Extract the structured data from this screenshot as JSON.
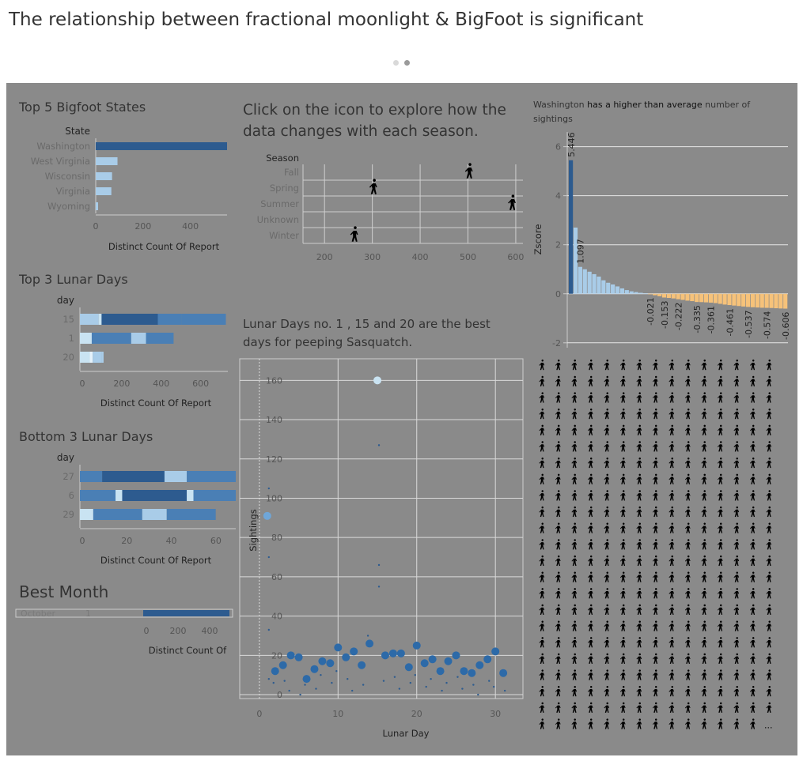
{
  "page": {
    "title": "The relationship between fractional moonlight & BigFoot is significant",
    "pager_colors": [
      "#d9d9d9",
      "#9a9a9a"
    ]
  },
  "colors": {
    "dark_blue": "#2d5b8f",
    "mid_blue": "#4a7fb5",
    "light_blue": "#a9cce8",
    "pale_blue": "#c9e3f2",
    "orange": "#f6c27a",
    "panel_bg": "#8a8a8a"
  },
  "panels": {
    "season_prompt": "Click on the icon to explore how the data changes  with each season.",
    "lunar_note": "Lunar Days no. 1 , 15 and 20  are the best days for peeping Sasquatch.",
    "zscore_note": {
      "part1": "Washington",
      "part2": " has a higher than average",
      "part3": " number of sightings"
    },
    "best_month_title": "Best Month"
  },
  "icons": {
    "bigfoot_glyph": "bigfoot-icon",
    "grid_rows": 23,
    "grid_cols": 15,
    "grid_last_row_icons": 14,
    "grid_ellipsis": "..."
  },
  "chart_data": [
    {
      "type": "bar",
      "title": "Top 5 Bigfoot States",
      "category_header": "State",
      "categories": [
        "Washington",
        "West Virginia",
        "Wisconsin",
        "Virginia",
        "Wyoming"
      ],
      "values": [
        555,
        92,
        69,
        66,
        10
      ],
      "xlabel": "Distinct Count Of Report",
      "xlim": [
        0,
        555
      ],
      "xticks": [
        0,
        200,
        400
      ]
    },
    {
      "type": "bar",
      "stacked": true,
      "title": "Top 3 Lunar Days",
      "category_header": "day",
      "categories": [
        "15",
        "1",
        "20"
      ],
      "segments": [
        [
          {
            "value": 95,
            "color": "#a9cce8"
          },
          {
            "value": 15,
            "color": "#c9e3f2"
          },
          {
            "value": 285,
            "color": "#2d5b8f"
          },
          {
            "value": 120,
            "color": "#4a7fb5"
          },
          {
            "value": 225,
            "color": "#4a7fb5"
          }
        ],
        [
          {
            "value": 60,
            "color": "#c9e3f2"
          },
          {
            "value": 200,
            "color": "#4a7fb5"
          },
          {
            "value": 75,
            "color": "#a9cce8"
          },
          {
            "value": 140,
            "color": "#4a7fb5"
          }
        ],
        [
          {
            "value": 50,
            "color": "#c9e3f2"
          },
          {
            "value": 15,
            "color": "#e5f2fa"
          },
          {
            "value": 45,
            "color": "#a9cce8"
          },
          {
            "value": 10,
            "color": "#a9cce8"
          }
        ]
      ],
      "xlabel": "Distinct Count Of Report",
      "xlim": [
        0,
        750
      ],
      "xticks": [
        0,
        200,
        400,
        600
      ]
    },
    {
      "type": "bar",
      "stacked": true,
      "title": "Bottom 3 Lunar Days",
      "category_header": "day",
      "categories": [
        "27",
        "6",
        "29"
      ],
      "segments": [
        [
          {
            "value": 10,
            "color": "#4a7fb5"
          },
          {
            "value": 28,
            "color": "#2d5b8f"
          },
          {
            "value": 10,
            "color": "#a9cce8"
          },
          {
            "value": 22,
            "color": "#4a7fb5"
          }
        ],
        [
          {
            "value": 16,
            "color": "#4a7fb5"
          },
          {
            "value": 3,
            "color": "#c9e3f2"
          },
          {
            "value": 29,
            "color": "#2d5b8f"
          },
          {
            "value": 3,
            "color": "#c9e3f2"
          },
          {
            "value": 19,
            "color": "#4a7fb5"
          }
        ],
        [
          {
            "value": 6,
            "color": "#c9e3f2"
          },
          {
            "value": 22,
            "color": "#4a7fb5"
          },
          {
            "value": 11,
            "color": "#a9cce8"
          },
          {
            "value": 22,
            "color": "#4a7fb5"
          }
        ]
      ],
      "xlabel": "Distinct Count Of Report",
      "xlim": [
        0,
        70
      ],
      "xticks": [
        0,
        20,
        40,
        60
      ]
    },
    {
      "type": "bar",
      "title": "Best Month",
      "categories": [
        "October"
      ],
      "row_value_label": "1",
      "values": [
        545
      ],
      "xlabel": "Distinct Count Of",
      "xlim": [
        0,
        550
      ],
      "xticks": [
        0,
        200,
        400
      ]
    },
    {
      "type": "scatter",
      "category_header": "Season",
      "categories": [
        "Fall",
        "Spring",
        "Summer",
        "Unknown",
        "Winter"
      ],
      "points": [
        {
          "season": "Fall",
          "x": 500
        },
        {
          "season": "Spring",
          "x": 300
        },
        {
          "season": "Summer",
          "x": 590
        },
        {
          "season": "Winter",
          "x": 260
        }
      ],
      "xlim": [
        155,
        615
      ],
      "xticks": [
        200,
        300,
        400,
        500,
        600
      ],
      "marker": "bigfoot-icon"
    },
    {
      "type": "bar",
      "ylabel": "Zscore",
      "ylim": [
        -2.2,
        6.6
      ],
      "yticks": [
        -2,
        0,
        2,
        4,
        6
      ],
      "values": [
        5.446,
        2.7,
        1.097,
        1.0,
        0.9,
        0.8,
        0.7,
        0.55,
        0.45,
        0.38,
        0.3,
        0.22,
        0.15,
        0.1,
        0.07,
        0.04,
        0.02,
        -0.021,
        -0.06,
        -0.1,
        -0.153,
        -0.17,
        -0.19,
        -0.222,
        -0.25,
        -0.28,
        -0.3,
        -0.335,
        -0.34,
        -0.35,
        -0.361,
        -0.38,
        -0.41,
        -0.44,
        -0.461,
        -0.48,
        -0.5,
        -0.52,
        -0.537,
        -0.55,
        -0.56,
        -0.57,
        -0.574,
        -0.58,
        -0.59,
        -0.6,
        -0.606
      ],
      "labeled_values": [
        5.446,
        1.097,
        -0.021,
        -0.153,
        -0.222,
        -0.335,
        -0.361,
        -0.461,
        -0.537,
        -0.574,
        -0.606
      ],
      "colors": {
        "top": "#2d5b8f",
        "positive": "#a9cce8",
        "negative": "#f6c27a"
      }
    },
    {
      "type": "scatter",
      "xlabel": "Lunar  Day",
      "ylabel": "Sightings",
      "xlim": [
        -2.5,
        33.5
      ],
      "ylim": [
        -2,
        171
      ],
      "xticks": [
        0,
        10,
        20,
        30
      ],
      "yticks": [
        0,
        20,
        40,
        60,
        80,
        100,
        120,
        140,
        160
      ],
      "big_points": [
        {
          "x": 1,
          "y": 91
        },
        {
          "x": 2,
          "y": 12
        },
        {
          "x": 3,
          "y": 15
        },
        {
          "x": 4,
          "y": 20
        },
        {
          "x": 5,
          "y": 19
        },
        {
          "x": 6,
          "y": 8
        },
        {
          "x": 7,
          "y": 13
        },
        {
          "x": 8,
          "y": 17
        },
        {
          "x": 9,
          "y": 16
        },
        {
          "x": 10,
          "y": 24
        },
        {
          "x": 11,
          "y": 19
        },
        {
          "x": 12,
          "y": 22
        },
        {
          "x": 13,
          "y": 15
        },
        {
          "x": 14,
          "y": 26
        },
        {
          "x": 15,
          "y": 160
        },
        {
          "x": 16,
          "y": 20
        },
        {
          "x": 17,
          "y": 21
        },
        {
          "x": 18,
          "y": 21
        },
        {
          "x": 19,
          "y": 14
        },
        {
          "x": 20,
          "y": 25
        },
        {
          "x": 21,
          "y": 16
        },
        {
          "x": 22,
          "y": 18
        },
        {
          "x": 23,
          "y": 12
        },
        {
          "x": 24,
          "y": 17
        },
        {
          "x": 25,
          "y": 20
        },
        {
          "x": 26,
          "y": 12
        },
        {
          "x": 27,
          "y": 11
        },
        {
          "x": 28,
          "y": 15
        },
        {
          "x": 29,
          "y": 18
        },
        {
          "x": 30,
          "y": 22
        },
        {
          "x": 31,
          "y": 11
        }
      ],
      "small_points": [
        {
          "x": 1,
          "y": 105
        },
        {
          "x": 1,
          "y": 70
        },
        {
          "x": 1,
          "y": 33
        },
        {
          "x": 1,
          "y": 8
        },
        {
          "x": 2,
          "y": 6
        },
        {
          "x": 3,
          "y": 7
        },
        {
          "x": 4,
          "y": 2
        },
        {
          "x": 5,
          "y": 0
        },
        {
          "x": 6,
          "y": 5
        },
        {
          "x": 7,
          "y": 3
        },
        {
          "x": 8,
          "y": 10
        },
        {
          "x": 9,
          "y": 6
        },
        {
          "x": 10,
          "y": 12
        },
        {
          "x": 11,
          "y": 8
        },
        {
          "x": 12,
          "y": 2
        },
        {
          "x": 13,
          "y": 5
        },
        {
          "x": 14,
          "y": 30
        },
        {
          "x": 15,
          "y": 127
        },
        {
          "x": 15,
          "y": 66
        },
        {
          "x": 15,
          "y": 55
        },
        {
          "x": 16,
          "y": 7
        },
        {
          "x": 17,
          "y": 9
        },
        {
          "x": 18,
          "y": 3
        },
        {
          "x": 19,
          "y": 6
        },
        {
          "x": 20,
          "y": 10
        },
        {
          "x": 21,
          "y": 4
        },
        {
          "x": 22,
          "y": 8
        },
        {
          "x": 23,
          "y": 2
        },
        {
          "x": 24,
          "y": 6
        },
        {
          "x": 25,
          "y": 9
        },
        {
          "x": 26,
          "y": 3
        },
        {
          "x": 27,
          "y": 5
        },
        {
          "x": 28,
          "y": 0
        },
        {
          "x": 29,
          "y": 7
        },
        {
          "x": 30,
          "y": 4
        },
        {
          "x": 31,
          "y": 2
        }
      ],
      "colors": {
        "big": "#2d6aa8",
        "highlight_15": "#c9e3f2",
        "highlight_1": "#6fa6d8",
        "small": "#2d5b8f"
      }
    }
  ]
}
